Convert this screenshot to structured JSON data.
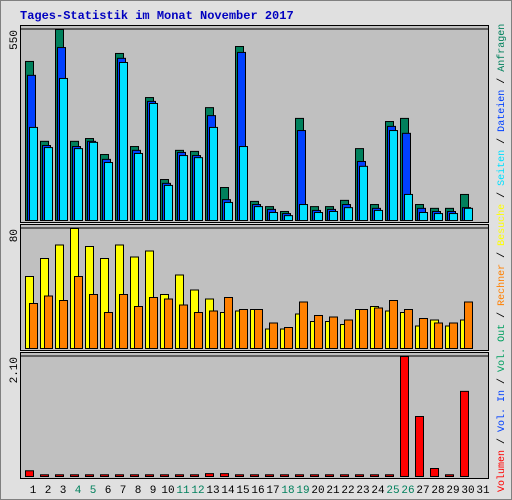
{
  "title": "Tages-Statistik im Monat November 2017",
  "categories": [
    "1",
    "2",
    "3",
    "4",
    "5",
    "6",
    "7",
    "8",
    "9",
    "10",
    "11",
    "12",
    "13",
    "14",
    "15",
    "16",
    "17",
    "18",
    "19",
    "20",
    "21",
    "22",
    "23",
    "24",
    "25",
    "26",
    "27",
    "28",
    "29",
    "30",
    "31"
  ],
  "category_colors": [
    "#000000",
    "#000000",
    "#000000",
    "#00805c",
    "#00805c",
    "#000000",
    "#000000",
    "#000000",
    "#000000",
    "#000000",
    "#00805c",
    "#00805c",
    "#000000",
    "#000000",
    "#000000",
    "#000000",
    "#000000",
    "#00805c",
    "#00805c",
    "#000000",
    "#000000",
    "#000000",
    "#000000",
    "#000000",
    "#00805c",
    "#00805c",
    "#000000",
    "#000000",
    "#000000",
    "#000000",
    "#000000"
  ],
  "legend_separator": " / ",
  "chart_data": [
    {
      "type": "bar",
      "ylim": [
        0,
        550
      ],
      "yticks": [
        550
      ],
      "series": [
        {
          "name": "Anfragen",
          "color": "#00805c",
          "values": [
            458,
            228,
            550,
            228,
            236,
            190,
            481,
            213,
            354,
            118,
            202,
            199,
            325,
            95,
            501,
            55,
            40,
            26,
            294,
            40,
            40,
            58,
            207,
            46,
            285,
            294,
            46,
            35,
            35,
            75,
            0
          ]
        },
        {
          "name": "Dateien",
          "color": "#0040ff",
          "values": [
            418,
            216,
            498,
            213,
            228,
            176,
            467,
            202,
            343,
            107,
            196,
            187,
            302,
            60,
            484,
            46,
            32,
            20,
            259,
            29,
            32,
            46,
            170,
            35,
            271,
            251,
            35,
            26,
            26,
            37,
            0
          ]
        },
        {
          "name": "Seiten",
          "color": "#00e0ff",
          "values": [
            268,
            210,
            409,
            207,
            225,
            167,
            455,
            193,
            337,
            101,
            187,
            181,
            268,
            52,
            213,
            40,
            23,
            14,
            46,
            23,
            26,
            37,
            156,
            29,
            259,
            75,
            23,
            20,
            20,
            35,
            0
          ]
        }
      ]
    },
    {
      "type": "bar",
      "ylim": [
        0,
        80
      ],
      "yticks": [
        80
      ],
      "series": [
        {
          "name": "Besuche",
          "color": "#ffff00",
          "values": [
            48,
            60,
            69,
            80,
            68,
            60,
            69,
            61,
            65,
            36,
            49,
            39,
            33,
            24,
            25,
            26,
            13,
            13,
            23,
            18,
            18,
            16,
            26,
            28,
            25,
            24,
            15,
            19,
            15,
            19,
            0
          ]
        },
        {
          "name": "Rechner",
          "color": "#ff8000",
          "values": [
            30,
            35,
            32,
            48,
            36,
            24,
            36,
            28,
            34,
            33,
            29,
            24,
            25,
            34,
            26,
            26,
            17,
            14,
            31,
            22,
            21,
            19,
            26,
            27,
            32,
            26,
            20,
            17,
            17,
            31,
            0
          ]
        }
      ]
    },
    {
      "type": "bar",
      "ylim": [
        0,
        2.1
      ],
      "yticks": [
        {
          "value": 2.1,
          "label": "2.10"
        }
      ],
      "series": [
        {
          "name": "Volumen",
          "color": "#ff0000",
          "values": [
            0.1,
            0.03,
            0.03,
            0.03,
            0.03,
            0.03,
            0.03,
            0.03,
            0.03,
            0.03,
            0.03,
            0.03,
            0.05,
            0.05,
            0.03,
            0.03,
            0.03,
            0.03,
            0.03,
            0.03,
            0.03,
            0.03,
            0.03,
            0.03,
            0.03,
            2.1,
            1.05,
            0.14,
            0.03,
            1.49,
            0
          ]
        }
      ],
      "legend_only": [
        {
          "name": "Vol. In",
          "color": "#0040ff"
        },
        {
          "name": "Vol. Out",
          "color": "#00a060"
        }
      ]
    }
  ]
}
